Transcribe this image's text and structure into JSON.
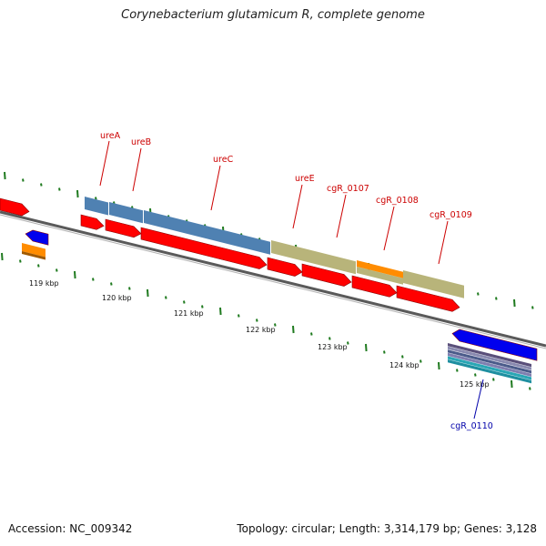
{
  "title": "Corynebacterium glutamicum R, complete genome",
  "footer": {
    "accession": "Accession: NC_009342",
    "summary": "Topology: circular; Length: 3,314,179 bp; Genes: 3,128"
  },
  "colors": {
    "forward_gene": "#ff0000",
    "gene_blue": "#0000ee",
    "cds_steel": "#4f81b2",
    "cds_khaki": "#b8b47a",
    "cds_orange": "#ff8c00",
    "label_red": "#cc0000",
    "label_blue": "#0000aa",
    "tick_green": "#1f7a1f",
    "backbone": "#808080"
  },
  "scale": {
    "labels": [
      "119 kbp",
      "120 kbp",
      "121 kbp",
      "122 kbp",
      "123 kbp",
      "124 kbp",
      "125 kbp"
    ]
  },
  "gene_labels": [
    {
      "text": "ureA",
      "color": "red"
    },
    {
      "text": "ureB",
      "color": "red"
    },
    {
      "text": "ureC",
      "color": "red"
    },
    {
      "text": "ureE",
      "color": "red"
    },
    {
      "text": "cgR_0107",
      "color": "red"
    },
    {
      "text": "cgR_0108",
      "color": "red"
    },
    {
      "text": "cgR_0109",
      "color": "red"
    },
    {
      "text": "cgR_0110",
      "color": "blue"
    }
  ]
}
